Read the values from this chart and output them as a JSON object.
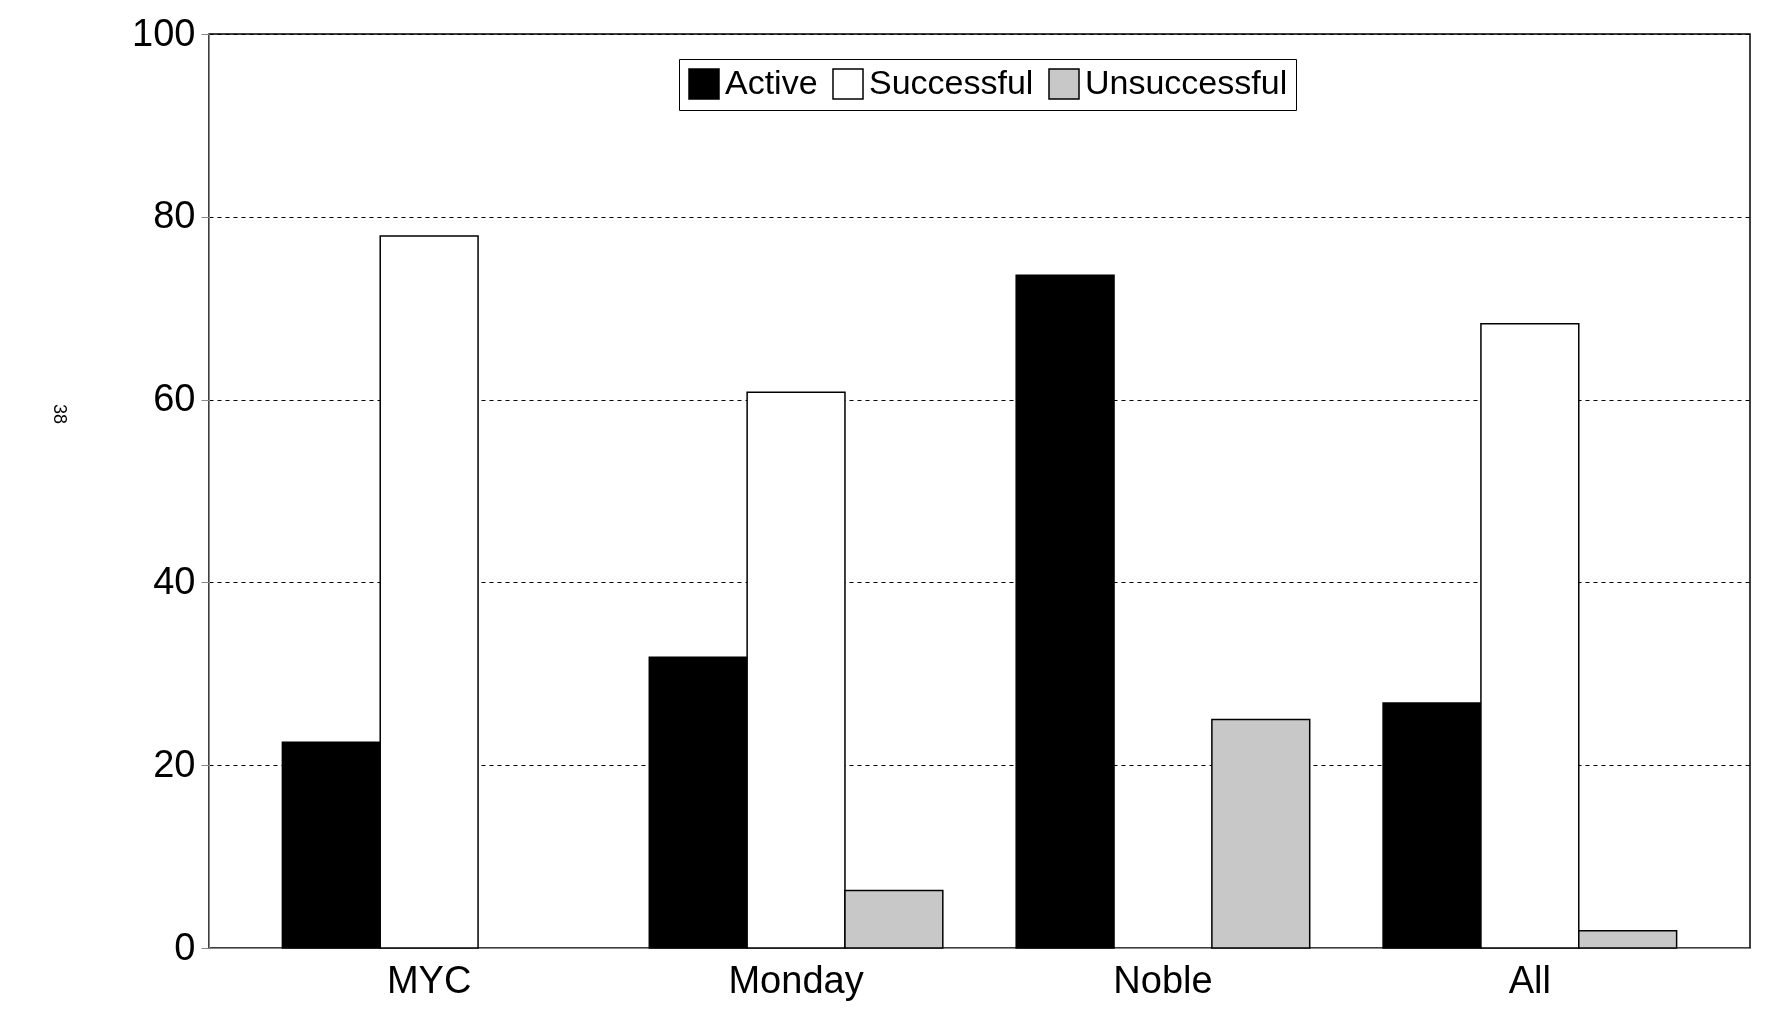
{
  "chart_data": {
    "type": "bar",
    "categories": [
      "MYC",
      "Monday",
      "Noble",
      "All"
    ],
    "series": [
      {
        "name": "Active",
        "color": "#000000",
        "values": [
          22.5,
          31.8,
          73.6,
          26.8
        ]
      },
      {
        "name": "Successful",
        "color": "#ffffff",
        "values": [
          77.9,
          60.8,
          0,
          68.3
        ]
      },
      {
        "name": "Unsuccessful",
        "color": "#c8c8c8",
        "values": [
          0,
          6.3,
          25,
          1.9
        ]
      }
    ],
    "ylim": [
      0,
      100
    ],
    "yticks": [
      0,
      20,
      40,
      60,
      80,
      100
    ],
    "grid": "y",
    "line_style": "dashed",
    "legend": "top",
    "annotations": [
      "38"
    ]
  }
}
